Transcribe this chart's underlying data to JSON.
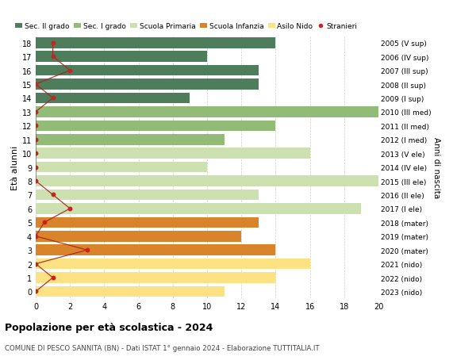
{
  "ages": [
    0,
    1,
    2,
    3,
    4,
    5,
    6,
    7,
    8,
    9,
    10,
    11,
    12,
    13,
    14,
    15,
    16,
    17,
    18
  ],
  "years": [
    "2023 (nido)",
    "2022 (nido)",
    "2021 (nido)",
    "2020 (mater)",
    "2019 (mater)",
    "2018 (mater)",
    "2017 (I ele)",
    "2016 (II ele)",
    "2015 (III ele)",
    "2014 (IV ele)",
    "2013 (V ele)",
    "2012 (I med)",
    "2011 (II med)",
    "2010 (III med)",
    "2009 (I sup)",
    "2008 (II sup)",
    "2007 (III sup)",
    "2006 (IV sup)",
    "2005 (V sup)"
  ],
  "bar_values": [
    11,
    14,
    16,
    14,
    12,
    13,
    19,
    13,
    20,
    10,
    16,
    11,
    14,
    20,
    9,
    13,
    13,
    10,
    14
  ],
  "bar_colors": [
    "#fce282",
    "#fce282",
    "#fce282",
    "#d9832a",
    "#d9832a",
    "#d9832a",
    "#cde0af",
    "#cde0af",
    "#cde0af",
    "#cde0af",
    "#cde0af",
    "#93bb78",
    "#93bb78",
    "#93bb78",
    "#4e7d5b",
    "#4e7d5b",
    "#4e7d5b",
    "#4e7d5b",
    "#4e7d5b"
  ],
  "stranieri_values": [
    0,
    1,
    0,
    3,
    0,
    0.5,
    2,
    1,
    0,
    0,
    0,
    0,
    0,
    0,
    1,
    0,
    2,
    1,
    1
  ],
  "legend_labels": [
    "Sec. II grado",
    "Sec. I grado",
    "Scuola Primaria",
    "Scuola Infanzia",
    "Asilo Nido",
    "Stranieri"
  ],
  "legend_colors": [
    "#4e7d5b",
    "#93bb78",
    "#cde0af",
    "#d9832a",
    "#fce282",
    "#cc2222"
  ],
  "title": "Popolazione per età scolastica - 2024",
  "subtitle": "COMUNE DI PESCO SANNITA (BN) - Dati ISTAT 1° gennaio 2024 - Elaborazione TUTTITALIA.IT",
  "ylabel_left": "Età alunni",
  "ylabel_right": "Anni di nascita",
  "xlim": [
    0,
    20
  ],
  "xticks": [
    0,
    2,
    4,
    6,
    8,
    10,
    12,
    14,
    16,
    18,
    20
  ],
  "background_color": "#ffffff",
  "grid_color": "#cccccc",
  "bar_height": 0.78
}
